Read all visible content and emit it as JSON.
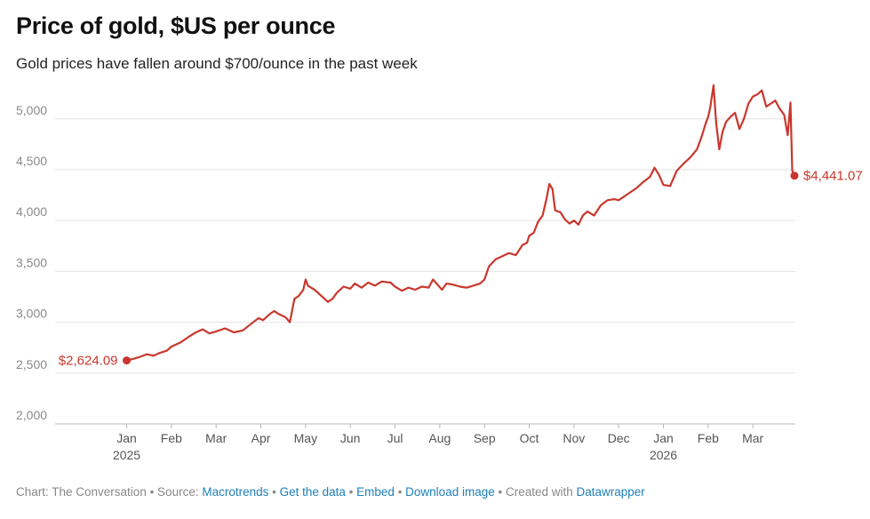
{
  "header": {
    "title": "Price of gold, $US per ounce",
    "subtitle": "Gold prices have fallen around $700/ounce in the past week"
  },
  "colors": {
    "line": "#c8372d",
    "grid": "#e3e3e3",
    "link": "#1d7fb8"
  },
  "chart_data": {
    "type": "line",
    "title": "Price of gold, $US per ounce",
    "subtitle": "Gold prices have fallen around $700/ounce in the past week",
    "xlabel": "",
    "ylabel": "",
    "ylim": [
      2000,
      5400
    ],
    "grid": true,
    "y_ticks": [
      {
        "value": 2000,
        "label": "2,000"
      },
      {
        "value": 2500,
        "label": "2,500"
      },
      {
        "value": 3000,
        "label": "3,000"
      },
      {
        "value": 3500,
        "label": "3,500"
      },
      {
        "value": 4000,
        "label": "4,000"
      },
      {
        "value": 4500,
        "label": "4,500"
      },
      {
        "value": 5000,
        "label": "5,000"
      }
    ],
    "x_ticks": [
      {
        "m": 0,
        "label": "Jan",
        "sub": "2025"
      },
      {
        "m": 1,
        "label": "Feb"
      },
      {
        "m": 2,
        "label": "Mar"
      },
      {
        "m": 3,
        "label": "Apr"
      },
      {
        "m": 4,
        "label": "May"
      },
      {
        "m": 5,
        "label": "Jun"
      },
      {
        "m": 6,
        "label": "Jul"
      },
      {
        "m": 7,
        "label": "Aug"
      },
      {
        "m": 8,
        "label": "Sep"
      },
      {
        "m": 9,
        "label": "Oct"
      },
      {
        "m": 10,
        "label": "Nov"
      },
      {
        "m": 11,
        "label": "Dec"
      },
      {
        "m": 12,
        "label": "Jan",
        "sub": "2026"
      },
      {
        "m": 13,
        "label": "Feb"
      },
      {
        "m": 14,
        "label": "Mar"
      }
    ],
    "xlim": [
      -1.6,
      14.95
    ],
    "start_label": "$2,624.09",
    "end_label": "$4,441.07",
    "series": [
      {
        "name": "Gold price",
        "points": [
          [
            0.0,
            2624
          ],
          [
            0.15,
            2640
          ],
          [
            0.3,
            2660
          ],
          [
            0.45,
            2685
          ],
          [
            0.6,
            2670
          ],
          [
            0.75,
            2700
          ],
          [
            0.9,
            2720
          ],
          [
            1.0,
            2760
          ],
          [
            1.2,
            2800
          ],
          [
            1.4,
            2860
          ],
          [
            1.55,
            2900
          ],
          [
            1.7,
            2930
          ],
          [
            1.85,
            2890
          ],
          [
            2.0,
            2910
          ],
          [
            2.2,
            2940
          ],
          [
            2.4,
            2900
          ],
          [
            2.6,
            2920
          ],
          [
            2.8,
            2990
          ],
          [
            2.95,
            3040
          ],
          [
            3.05,
            3020
          ],
          [
            3.2,
            3080
          ],
          [
            3.3,
            3110
          ],
          [
            3.4,
            3080
          ],
          [
            3.55,
            3050
          ],
          [
            3.65,
            3000
          ],
          [
            3.75,
            3230
          ],
          [
            3.85,
            3260
          ],
          [
            3.95,
            3320
          ],
          [
            4.0,
            3420
          ],
          [
            4.05,
            3360
          ],
          [
            4.2,
            3320
          ],
          [
            4.35,
            3260
          ],
          [
            4.5,
            3200
          ],
          [
            4.6,
            3230
          ],
          [
            4.7,
            3290
          ],
          [
            4.85,
            3350
          ],
          [
            5.0,
            3330
          ],
          [
            5.1,
            3380
          ],
          [
            5.25,
            3340
          ],
          [
            5.4,
            3390
          ],
          [
            5.55,
            3360
          ],
          [
            5.7,
            3400
          ],
          [
            5.9,
            3390
          ],
          [
            6.0,
            3350
          ],
          [
            6.15,
            3310
          ],
          [
            6.3,
            3340
          ],
          [
            6.45,
            3320
          ],
          [
            6.6,
            3350
          ],
          [
            6.75,
            3340
          ],
          [
            6.85,
            3420
          ],
          [
            6.95,
            3370
          ],
          [
            7.05,
            3320
          ],
          [
            7.15,
            3380
          ],
          [
            7.3,
            3370
          ],
          [
            7.45,
            3350
          ],
          [
            7.6,
            3340
          ],
          [
            7.75,
            3360
          ],
          [
            7.9,
            3380
          ],
          [
            8.0,
            3420
          ],
          [
            8.1,
            3550
          ],
          [
            8.25,
            3620
          ],
          [
            8.4,
            3650
          ],
          [
            8.55,
            3680
          ],
          [
            8.7,
            3660
          ],
          [
            8.85,
            3760
          ],
          [
            8.95,
            3780
          ],
          [
            9.0,
            3850
          ],
          [
            9.1,
            3880
          ],
          [
            9.2,
            3990
          ],
          [
            9.3,
            4050
          ],
          [
            9.38,
            4200
          ],
          [
            9.45,
            4360
          ],
          [
            9.52,
            4310
          ],
          [
            9.58,
            4100
          ],
          [
            9.7,
            4080
          ],
          [
            9.8,
            4010
          ],
          [
            9.9,
            3970
          ],
          [
            10.0,
            4000
          ],
          [
            10.1,
            3960
          ],
          [
            10.2,
            4050
          ],
          [
            10.3,
            4090
          ],
          [
            10.45,
            4050
          ],
          [
            10.6,
            4150
          ],
          [
            10.75,
            4200
          ],
          [
            10.9,
            4210
          ],
          [
            11.0,
            4200
          ],
          [
            11.2,
            4260
          ],
          [
            11.4,
            4320
          ],
          [
            11.55,
            4380
          ],
          [
            11.7,
            4430
          ],
          [
            11.8,
            4520
          ],
          [
            11.9,
            4450
          ],
          [
            12.0,
            4350
          ],
          [
            12.15,
            4340
          ],
          [
            12.3,
            4490
          ],
          [
            12.45,
            4560
          ],
          [
            12.6,
            4620
          ],
          [
            12.75,
            4700
          ],
          [
            12.85,
            4820
          ],
          [
            12.95,
            4960
          ],
          [
            13.0,
            5020
          ],
          [
            13.05,
            5120
          ],
          [
            13.12,
            5330
          ],
          [
            13.18,
            4960
          ],
          [
            13.25,
            4700
          ],
          [
            13.32,
            4870
          ],
          [
            13.4,
            4970
          ],
          [
            13.5,
            5020
          ],
          [
            13.6,
            5060
          ],
          [
            13.7,
            4900
          ],
          [
            13.8,
            5000
          ],
          [
            13.9,
            5150
          ],
          [
            14.0,
            5220
          ],
          [
            14.1,
            5240
          ],
          [
            14.2,
            5280
          ],
          [
            14.3,
            5120
          ],
          [
            14.4,
            5150
          ],
          [
            14.5,
            5180
          ],
          [
            14.6,
            5100
          ],
          [
            14.7,
            5040
          ],
          [
            14.78,
            4840
          ],
          [
            14.84,
            5160
          ],
          [
            14.88,
            4490
          ],
          [
            14.93,
            4441
          ]
        ]
      }
    ]
  },
  "footer": {
    "chart_credit": "Chart: The Conversation",
    "sep1": " • Source: ",
    "source_link": "Macrotrends",
    "sep2": " • ",
    "get_data": "Get the data",
    "sep3": " • ",
    "embed": "Embed",
    "sep4": " • ",
    "download": "Download image",
    "sep5": " • Created with ",
    "datawrapper": "Datawrapper"
  }
}
